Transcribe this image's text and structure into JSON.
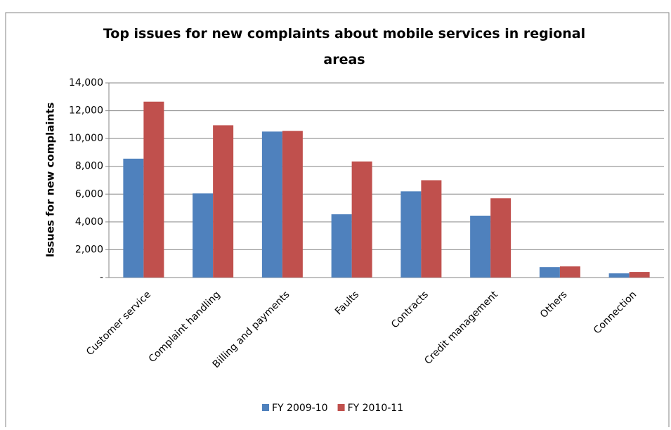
{
  "chart_data": {
    "type": "bar",
    "title": "Top issues for new complaints about mobile services in regional areas",
    "y_label": "Issues for new complaints",
    "categories": [
      "Customer service",
      "Complaint handling",
      "Billing and payments",
      "Faults",
      "Contracts",
      "Credit management",
      "Others",
      "Connection"
    ],
    "series": [
      {
        "name": "FY 2009-10",
        "color": "#4f81bd",
        "values": [
          8550,
          6050,
          10500,
          4550,
          6200,
          4450,
          750,
          300
        ]
      },
      {
        "name": "FY 2010-11",
        "color": "#c0504d",
        "values": [
          12650,
          10950,
          10550,
          8350,
          7000,
          5700,
          800,
          400
        ]
      }
    ],
    "ylim": [
      0,
      14000
    ],
    "yticks": [
      {
        "value": 0,
        "label": "-"
      },
      {
        "value": 2000,
        "label": "2,000"
      },
      {
        "value": 4000,
        "label": "4,000"
      },
      {
        "value": 6000,
        "label": "6,000"
      },
      {
        "value": 8000,
        "label": "8,000"
      },
      {
        "value": 10000,
        "label": "10,000"
      },
      {
        "value": 12000,
        "label": "12,000"
      },
      {
        "value": 14000,
        "label": "14,000"
      }
    ],
    "grid": true,
    "legend": "bottom"
  }
}
